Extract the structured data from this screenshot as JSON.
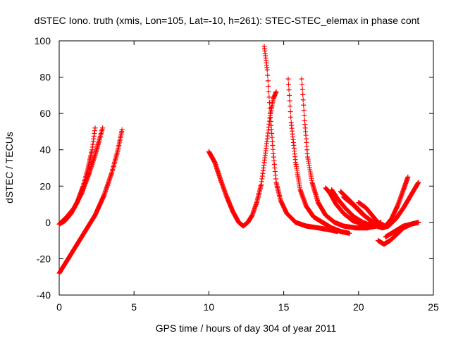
{
  "title": "dSTEC Iono. truth (xmis, Lon=105, Lat=-10, h=261): STEC-STEC_elemax in phase cont",
  "colors": {
    "series": "#ff0000",
    "axis": "#000000",
    "grid": "#a0a0a0"
  },
  "chart_data": {
    "type": "scatter",
    "title": "dSTEC Iono. truth (xmis, Lon=105, Lat=-10, h=261): STEC-STEC_elemax in phase cont",
    "xlabel": "GPS time / hours of day 304 of year 2011",
    "ylabel": "dSTEC  / TECUs",
    "xlim": [
      0,
      25
    ],
    "ylim": [
      -40,
      100
    ],
    "xticks": [
      0,
      5,
      10,
      15,
      20,
      25
    ],
    "yticks": [
      -40,
      -20,
      0,
      20,
      40,
      60,
      80,
      100
    ],
    "grid": false,
    "marker": "+",
    "series": [
      {
        "x": [
          0.0,
          0.4,
          0.8,
          1.2,
          1.6,
          1.9,
          2.2,
          2.4
        ],
        "y": [
          -1,
          1,
          5,
          11,
          20,
          29,
          40,
          52
        ]
      },
      {
        "x": [
          0.0,
          0.5,
          1.0,
          1.5,
          2.0,
          2.4,
          2.7,
          2.9
        ],
        "y": [
          -1,
          3,
          8,
          16,
          27,
          37,
          46,
          52
        ]
      },
      {
        "x": [
          0.0,
          0.6,
          1.2,
          1.8,
          2.4,
          3.0,
          3.5,
          3.9,
          4.2
        ],
        "y": [
          -28,
          -20,
          -12,
          -4,
          4,
          15,
          27,
          39,
          51
        ]
      },
      {
        "x": [
          10.0,
          10.4,
          10.8,
          11.2,
          11.6,
          12.0,
          12.3,
          12.6,
          12.9,
          13.2,
          13.5,
          13.7,
          13.9,
          14.1,
          14.3,
          14.5
        ],
        "y": [
          39,
          33,
          23,
          14,
          6,
          0,
          -2,
          0,
          4,
          11,
          21,
          33,
          46,
          59,
          68,
          72
        ]
      },
      {
        "x": [
          13.7,
          13.9,
          14.1,
          14.3,
          14.5,
          14.8,
          15.2,
          15.8,
          16.5,
          17.3,
          18.0,
          18.6
        ],
        "y": [
          97,
          84,
          60,
          38,
          22,
          12,
          5,
          0,
          -2,
          -3,
          -4,
          -5
        ]
      },
      {
        "x": [
          15.3,
          15.5,
          15.8,
          16.1,
          16.5,
          17.0,
          17.6,
          18.2,
          18.8,
          19.4
        ],
        "y": [
          79,
          55,
          33,
          18,
          9,
          3,
          0,
          -3,
          -5,
          -6
        ]
      },
      {
        "x": [
          16.2,
          16.4,
          16.6,
          16.9,
          17.3,
          17.8,
          18.4,
          19.0,
          19.8,
          20.6,
          21.2
        ],
        "y": [
          79,
          56,
          36,
          22,
          11,
          4,
          0,
          -2,
          -3,
          -3,
          -2
        ]
      },
      {
        "x": [
          17.8,
          18.1,
          18.5,
          19.0,
          19.6,
          20.3,
          21.0,
          21.5
        ],
        "y": [
          19,
          16,
          10,
          5,
          1,
          -1,
          -1,
          0
        ]
      },
      {
        "x": [
          18.2,
          18.6,
          19.1,
          19.7,
          20.3,
          20.9,
          21.4
        ],
        "y": [
          18,
          13,
          8,
          3,
          0,
          -2,
          -2
        ]
      },
      {
        "x": [
          18.8,
          19.3,
          19.9,
          20.5,
          21.0,
          21.4
        ],
        "y": [
          17,
          13,
          8,
          3,
          0,
          -1
        ]
      },
      {
        "x": [
          19.0,
          19.6,
          20.2,
          20.8,
          21.3,
          21.6
        ],
        "y": [
          14,
          10,
          5,
          1,
          -2,
          -3
        ]
      },
      {
        "x": [
          20.0,
          20.5,
          21.0,
          21.4,
          21.8,
          22.2,
          22.6,
          23.0,
          23.3
        ],
        "y": [
          11,
          8,
          3,
          -1,
          -2,
          2,
          9,
          18,
          25
        ]
      },
      {
        "x": [
          20.8,
          21.2,
          21.6,
          22.0,
          22.5,
          23.0,
          23.5,
          24.0
        ],
        "y": [
          0,
          -2,
          -3,
          -2,
          2,
          8,
          15,
          22
        ]
      },
      {
        "x": [
          21.3,
          21.7,
          22.1,
          22.5,
          23.0,
          23.5,
          24.0
        ],
        "y": [
          -10,
          -12,
          -10,
          -7,
          -3,
          -1,
          0
        ]
      },
      {
        "x": [
          21.8,
          22.2,
          22.6,
          23.0,
          23.5,
          24.0
        ],
        "y": [
          -8,
          -6,
          -4,
          -2,
          -1,
          0
        ]
      }
    ]
  }
}
